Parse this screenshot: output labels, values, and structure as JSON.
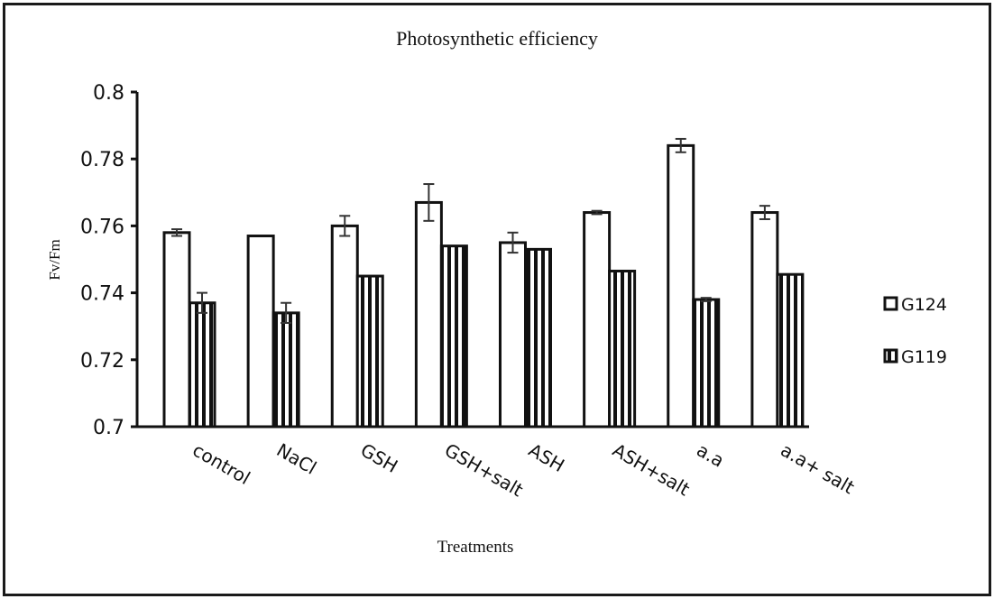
{
  "chart_data": {
    "type": "bar",
    "title": "Photosynthetic efficiency",
    "xlabel": "Treatments",
    "ylabel": "Fv/Fm",
    "ylim": [
      0.7,
      0.8
    ],
    "yticks": [
      "0.7",
      "0.72",
      "0.74",
      "0.76",
      "0.78",
      "0.8"
    ],
    "ytick_values": [
      0.7,
      0.72,
      0.74,
      0.76,
      0.78,
      0.8
    ],
    "grid": false,
    "legend_position": "right",
    "categories": [
      "control",
      "NaCl",
      "GSH",
      "GSH+salt",
      "ASH",
      "ASH+salt",
      "a.a",
      "a.a+ salt"
    ],
    "series": [
      {
        "name": "G124",
        "fill": "white",
        "values": [
          0.758,
          0.757,
          0.76,
          0.767,
          0.755,
          0.764,
          0.784,
          0.764
        ],
        "errors": [
          0.001,
          0.0,
          0.003,
          0.0055,
          0.003,
          0.0005,
          0.002,
          0.002
        ]
      },
      {
        "name": "G119",
        "fill": "vertical-stripes",
        "values": [
          0.737,
          0.734,
          0.745,
          0.754,
          0.753,
          0.7465,
          0.738,
          0.7455
        ],
        "errors": [
          0.003,
          0.003,
          0.0,
          0.0,
          0.0,
          0.0,
          0.0005,
          0.0
        ]
      }
    ]
  },
  "colors": {
    "stroke": "#111111",
    "background": "#ffffff"
  }
}
